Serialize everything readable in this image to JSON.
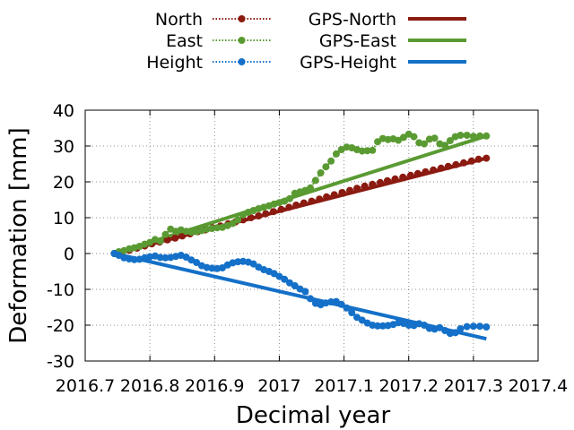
{
  "chart_data": {
    "type": "line",
    "xlabel": "Decimal year",
    "ylabel": "Deformation [mm]",
    "xlim": [
      2016.7,
      2017.4
    ],
    "ylim": [
      -30,
      40
    ],
    "xticks": [
      2016.7,
      2016.8,
      2016.9,
      2017.0,
      2017.1,
      2017.2,
      2017.3,
      2017.4
    ],
    "xtick_labels": [
      "2016.7",
      "2016.8",
      "2016.9",
      "2017",
      "2017.1",
      "2017.2",
      "2017.3",
      "2017.4"
    ],
    "yticks": [
      -30,
      -20,
      -10,
      0,
      10,
      20,
      30,
      40
    ],
    "ytick_labels": [
      "-30",
      "-20",
      "-10",
      "0",
      "10",
      "20",
      "30",
      "40"
    ],
    "grid": true,
    "legend_position": "top",
    "series": [
      {
        "name": "North",
        "color": "#8b1a10",
        "style": "dotted-markers",
        "x": [
          2016.745,
          2016.756,
          2016.768,
          2016.78,
          2016.792,
          2016.803,
          2016.815,
          2016.827,
          2016.839,
          2016.85,
          2016.862,
          2016.874,
          2016.886,
          2016.897,
          2016.909,
          2016.921,
          2016.932,
          2016.944,
          2016.956,
          2016.968,
          2016.979,
          2016.991,
          2017.003,
          2017.015,
          2017.026,
          2017.038,
          2017.05,
          2017.062,
          2017.073,
          2017.085,
          2017.097,
          2017.109,
          2017.12,
          2017.132,
          2017.144,
          2017.156,
          2017.167,
          2017.179,
          2017.191,
          2017.203,
          2017.214,
          2017.226,
          2017.238,
          2017.25,
          2017.261,
          2017.273,
          2017.285,
          2017.297,
          2017.308,
          2017.32
        ],
        "y": [
          0.0,
          0.3,
          0.9,
          1.5,
          2.1,
          2.7,
          3.2,
          3.8,
          4.3,
          4.9,
          5.5,
          6.1,
          6.6,
          7.2,
          7.7,
          8.3,
          8.8,
          9.4,
          10.0,
          10.5,
          11.1,
          11.7,
          12.3,
          12.9,
          13.5,
          14.1,
          14.6,
          15.2,
          15.8,
          16.4,
          17.0,
          17.6,
          18.2,
          18.8,
          19.3,
          19.8,
          20.3,
          20.8,
          21.3,
          21.8,
          22.3,
          22.8,
          23.3,
          23.8,
          24.3,
          24.8,
          25.3,
          25.8,
          26.3,
          26.6
        ]
      },
      {
        "name": "East",
        "color": "#5a9a32",
        "style": "dotted-markers",
        "x": [
          2016.745,
          2016.752,
          2016.76,
          2016.768,
          2016.776,
          2016.784,
          2016.792,
          2016.8,
          2016.808,
          2016.816,
          2016.824,
          2016.832,
          2016.84,
          2016.848,
          2016.856,
          2016.864,
          2016.872,
          2016.88,
          2016.888,
          2016.896,
          2016.904,
          2016.912,
          2016.92,
          2016.928,
          2016.936,
          2016.944,
          2016.952,
          2016.96,
          2016.968,
          2016.976,
          2016.984,
          2016.992,
          2017.0,
          2017.008,
          2017.016,
          2017.024,
          2017.032,
          2017.04,
          2017.048,
          2017.056,
          2017.064,
          2017.072,
          2017.08,
          2017.088,
          2017.096,
          2017.104,
          2017.112,
          2017.12,
          2017.128,
          2017.136,
          2017.144,
          2017.152,
          2017.16,
          2017.168,
          2017.176,
          2017.184,
          2017.192,
          2017.2,
          2017.208,
          2017.216,
          2017.224,
          2017.232,
          2017.24,
          2017.248,
          2017.256,
          2017.264,
          2017.272,
          2017.28,
          2017.29,
          2017.3,
          2017.31,
          2017.32
        ],
        "y": [
          0.0,
          0.5,
          0.8,
          1.3,
          1.6,
          2.0,
          2.6,
          3.1,
          3.9,
          3.5,
          5.3,
          6.8,
          6.2,
          6.6,
          6.2,
          6.0,
          6.1,
          6.4,
          6.8,
          7.0,
          7.2,
          7.3,
          7.8,
          8.4,
          9.4,
          10.8,
          11.5,
          12.0,
          12.5,
          12.9,
          13.3,
          13.8,
          14.2,
          14.6,
          15.3,
          16.8,
          17.2,
          17.6,
          18.3,
          20.4,
          22.5,
          24.2,
          25.8,
          27.8,
          29.0,
          29.7,
          29.5,
          29.0,
          28.6,
          28.7,
          28.8,
          31.2,
          32.1,
          31.8,
          32.0,
          31.6,
          32.4,
          33.3,
          32.6,
          30.9,
          30.6,
          31.9,
          32.2,
          30.6,
          30.2,
          31.5,
          32.6,
          33.0,
          33.0,
          32.7,
          32.8,
          32.8
        ]
      },
      {
        "name": "Height",
        "color": "#1470c8",
        "style": "dotted-markers",
        "x": [
          2016.745,
          2016.752,
          2016.76,
          2016.768,
          2016.776,
          2016.784,
          2016.792,
          2016.8,
          2016.808,
          2016.816,
          2016.824,
          2016.832,
          2016.84,
          2016.848,
          2016.856,
          2016.864,
          2016.872,
          2016.88,
          2016.888,
          2016.896,
          2016.904,
          2016.912,
          2016.92,
          2016.928,
          2016.936,
          2016.944,
          2016.952,
          2016.96,
          2016.968,
          2016.976,
          2016.984,
          2016.992,
          2017.0,
          2017.008,
          2017.016,
          2017.024,
          2017.032,
          2017.04,
          2017.048,
          2017.056,
          2017.064,
          2017.072,
          2017.08,
          2017.088,
          2017.096,
          2017.104,
          2017.112,
          2017.12,
          2017.128,
          2017.136,
          2017.144,
          2017.152,
          2017.16,
          2017.168,
          2017.176,
          2017.184,
          2017.192,
          2017.2,
          2017.208,
          2017.216,
          2017.224,
          2017.232,
          2017.24,
          2017.248,
          2017.256,
          2017.264,
          2017.272,
          2017.28,
          2017.29,
          2017.3,
          2017.31,
          2017.32
        ],
        "y": [
          0.0,
          -0.5,
          -1.2,
          -1.5,
          -1.7,
          -1.6,
          -1.2,
          -0.9,
          -0.7,
          -1.1,
          -1.2,
          -1.1,
          -0.8,
          -0.5,
          -1.0,
          -1.8,
          -2.5,
          -3.4,
          -3.9,
          -4.1,
          -4.2,
          -4.0,
          -3.2,
          -2.6,
          -2.3,
          -2.2,
          -2.4,
          -2.9,
          -3.8,
          -4.5,
          -5.0,
          -5.6,
          -6.4,
          -7.2,
          -8.2,
          -9.0,
          -9.9,
          -10.6,
          -12.6,
          -13.9,
          -14.3,
          -13.8,
          -13.5,
          -13.4,
          -14.2,
          -15.2,
          -16.5,
          -17.8,
          -18.6,
          -19.4,
          -20.0,
          -20.2,
          -20.2,
          -20.1,
          -19.8,
          -19.3,
          -19.5,
          -20.0,
          -20.1,
          -19.6,
          -20.0,
          -20.9,
          -21.1,
          -20.7,
          -21.5,
          -22.3,
          -22.1,
          -21.0,
          -20.4,
          -20.3,
          -20.3,
          -20.5
        ]
      },
      {
        "name": "GPS-North",
        "color": "#8b1a10",
        "style": "solid",
        "x": [
          2016.745,
          2017.32
        ],
        "y": [
          0.0,
          26.6
        ]
      },
      {
        "name": "GPS-East",
        "color": "#5a9a32",
        "style": "solid",
        "x": [
          2016.745,
          2017.32
        ],
        "y": [
          0.0,
          32.8
        ]
      },
      {
        "name": "GPS-Height",
        "color": "#1470c8",
        "style": "solid",
        "x": [
          2016.745,
          2017.32
        ],
        "y": [
          0.0,
          -23.8
        ]
      }
    ]
  }
}
